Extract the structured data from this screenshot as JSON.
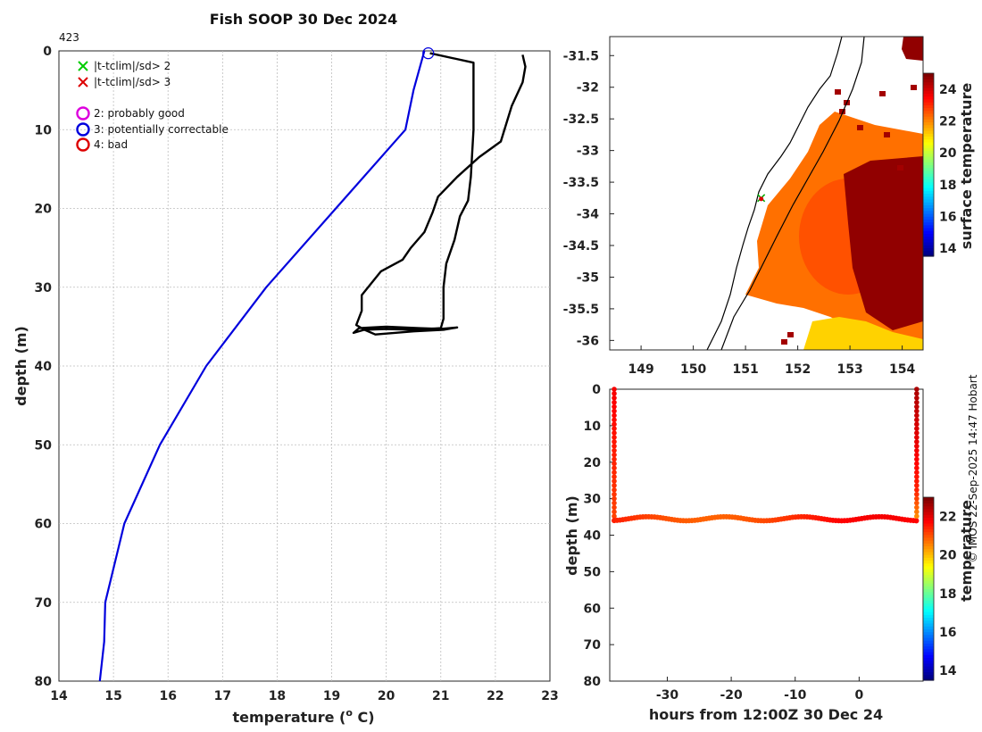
{
  "title": "Fish SOOP 30 Dec 2024",
  "credit": "© IMOS 22-Sep-2025 14:47 Hobart",
  "colors": {
    "climatology": "#0000dd",
    "profile": "#000000",
    "grid": "#cccccc"
  },
  "chart_data": [
    {
      "id": "profile",
      "type": "line",
      "xlabel": "temperature (",
      "xlabel_sup": "o",
      "xlabel_end": " C)",
      "ylabel": "depth (m)",
      "xlim": [
        14,
        23
      ],
      "ylim": [
        80,
        0
      ],
      "y_reversed": true,
      "grid": true,
      "xticks": [
        14,
        15,
        16,
        17,
        18,
        19,
        20,
        21,
        22,
        23
      ],
      "yticks": [
        0,
        10,
        20,
        30,
        40,
        50,
        60,
        70,
        80
      ],
      "corner_label": "423",
      "legend": {
        "placement": "top-left",
        "entries": [
          {
            "marker": "x",
            "color": "#00cc00",
            "label": "|t-tclim|/sd> 2"
          },
          {
            "marker": "x",
            "color": "#dd0000",
            "label": "|t-tclim|/sd> 3"
          },
          {
            "marker": "o",
            "color": "#dd00dd",
            "label": "2: probably good"
          },
          {
            "marker": "o",
            "color": "#0000dd",
            "label": "3: potentially correctable"
          },
          {
            "marker": "o",
            "color": "#dd0000",
            "label": "4: bad"
          }
        ]
      },
      "series": [
        {
          "color": "#0000dd",
          "points": [
            [
              20.7,
              0
            ],
            [
              20.5,
              5
            ],
            [
              20.35,
              10
            ],
            [
              17.8,
              30
            ],
            [
              16.7,
              40
            ],
            [
              15.85,
              50
            ],
            [
              15.2,
              60
            ],
            [
              14.85,
              70
            ],
            [
              14.83,
              75
            ],
            [
              14.75,
              80
            ]
          ]
        },
        {
          "color": "#000000",
          "points": [
            [
              20.8,
              0.3
            ],
            [
              21.6,
              1.5
            ],
            [
              21.6,
              10
            ],
            [
              21.55,
              16
            ],
            [
              21.5,
              19
            ],
            [
              21.35,
              21
            ],
            [
              21.25,
              24
            ],
            [
              21.1,
              27
            ],
            [
              21.05,
              30
            ],
            [
              21.05,
              34
            ],
            [
              21.0,
              35.2
            ],
            [
              20.5,
              35.4
            ],
            [
              20.0,
              35.3
            ],
            [
              19.6,
              35.4
            ],
            [
              19.4,
              35.8
            ],
            [
              19.5,
              35.2
            ],
            [
              20.0,
              35.0
            ],
            [
              20.6,
              35.2
            ],
            [
              21.0,
              35.3
            ],
            [
              21.3,
              35.1
            ],
            [
              21.05,
              35.4
            ],
            [
              20.5,
              35.6
            ],
            [
              19.8,
              36.0
            ],
            [
              19.6,
              35.4
            ],
            [
              19.45,
              34.8
            ],
            [
              19.55,
              33.0
            ],
            [
              19.55,
              31.0
            ],
            [
              19.9,
              28.0
            ],
            [
              20.3,
              26.5
            ],
            [
              20.45,
              25.0
            ],
            [
              20.7,
              23.0
            ],
            [
              20.85,
              20.5
            ],
            [
              20.95,
              18.5
            ],
            [
              21.3,
              16.0
            ],
            [
              21.7,
              13.5
            ],
            [
              22.1,
              11.5
            ],
            [
              22.3,
              7.0
            ],
            [
              22.5,
              4.0
            ],
            [
              22.55,
              2.0
            ],
            [
              22.5,
              0.5
            ]
          ]
        }
      ],
      "markers": [
        {
          "shape": "circle",
          "color": "#0000dd",
          "x": 20.77,
          "y": 0.3
        }
      ]
    },
    {
      "id": "map",
      "type": "heatmap",
      "colorbar_label": "surface temperature",
      "xlim": [
        148.4,
        154.4
      ],
      "ylim": [
        -36.15,
        -31.2
      ],
      "xticks": [
        149,
        150,
        151,
        152,
        153,
        154
      ],
      "yticks": [
        -31.5,
        -32,
        -32.5,
        -33,
        -33.5,
        -34,
        -34.5,
        -35,
        -35.5,
        -36
      ],
      "ytick_labels": [
        "-31.5",
        "-32",
        "-32.5",
        "-33",
        "-33.5",
        "-34",
        "-34.5",
        "-35",
        "-35.5",
        "-36"
      ],
      "clim": [
        13.5,
        25
      ],
      "colorbar_ticks": [
        14,
        16,
        18,
        20,
        22,
        24
      ],
      "track_point": {
        "lon": 151.3,
        "lat": -33.75
      }
    },
    {
      "id": "section",
      "type": "scatter",
      "xlabel": "hours from 12:00Z 30 Dec 24",
      "ylabel": "depth (m)",
      "colorbar_label": "temperature",
      "xlim": [
        -39,
        10
      ],
      "ylim": [
        80,
        0
      ],
      "y_reversed": true,
      "xticks": [
        -30,
        -20,
        -10,
        0
      ],
      "yticks": [
        0,
        10,
        20,
        30,
        40,
        50,
        60,
        70,
        80
      ],
      "clim": [
        13.5,
        23
      ],
      "colorbar_ticks": [
        14,
        16,
        18,
        20,
        22
      ],
      "descent_x": -38.3,
      "ascent_x": 9.0,
      "bottom_depth": 35.5
    }
  ]
}
